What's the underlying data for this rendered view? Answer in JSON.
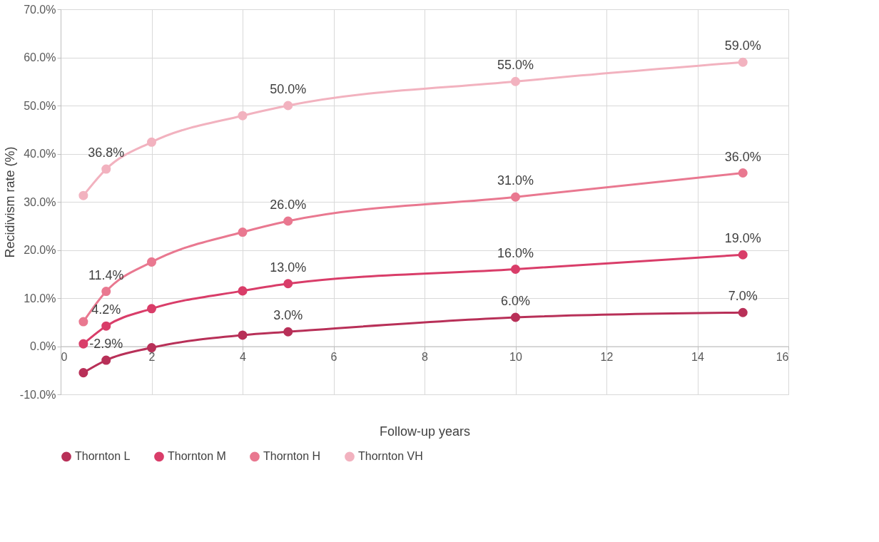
{
  "chart_data": {
    "type": "line",
    "xlabel": "Follow-up years",
    "ylabel": "Recidivism rate (%)",
    "x": [
      0.5,
      1,
      2,
      4,
      5,
      10,
      15
    ],
    "series": [
      {
        "name": "Thornton L",
        "color": "#b83058",
        "values": [
          -5.5,
          -2.9,
          -0.3,
          2.3,
          3.0,
          6.0,
          7.0
        ],
        "value_labels": [
          null,
          "-2.9%",
          null,
          null,
          "3.0%",
          "6.0%",
          "7.0%"
        ]
      },
      {
        "name": "Thornton M",
        "color": "#d93d69",
        "values": [
          0.5,
          4.2,
          7.8,
          11.5,
          13.0,
          16.0,
          19.0
        ],
        "value_labels": [
          null,
          "4.2%",
          null,
          null,
          "13.0%",
          "16.0%",
          "19.0%"
        ]
      },
      {
        "name": "Thornton H",
        "color": "#e97890",
        "values": [
          5.1,
          11.4,
          17.5,
          23.7,
          26.0,
          31.0,
          36.0
        ],
        "value_labels": [
          null,
          "11.4%",
          null,
          null,
          "26.0%",
          "31.0%",
          "36.0%"
        ]
      },
      {
        "name": "Thornton VH",
        "color": "#f2b2bf",
        "values": [
          31.3,
          36.8,
          42.4,
          47.9,
          50.0,
          55.0,
          59.0
        ],
        "value_labels": [
          null,
          "36.8%",
          null,
          null,
          "50.0%",
          "55.0%",
          "59.0%"
        ]
      }
    ],
    "xlim": [
      0,
      16
    ],
    "xticks": [
      0,
      2,
      4,
      6,
      8,
      10,
      12,
      14,
      16
    ],
    "ylim": [
      -10,
      70
    ],
    "yticks": [
      {
        "value": -10,
        "label": "-10.0%"
      },
      {
        "value": 0,
        "label": "0.0%"
      },
      {
        "value": 10,
        "label": "10.0%"
      },
      {
        "value": 20,
        "label": "20.0%"
      },
      {
        "value": 30,
        "label": "30.0%"
      },
      {
        "value": 40,
        "label": "40.0%"
      },
      {
        "value": 50,
        "label": "50.0%"
      },
      {
        "value": 60,
        "label": "60.0%"
      },
      {
        "value": 70,
        "label": "70.0%"
      }
    ],
    "grid": true,
    "legend": "bottom",
    "marker": "circle",
    "line_style": "solid"
  }
}
